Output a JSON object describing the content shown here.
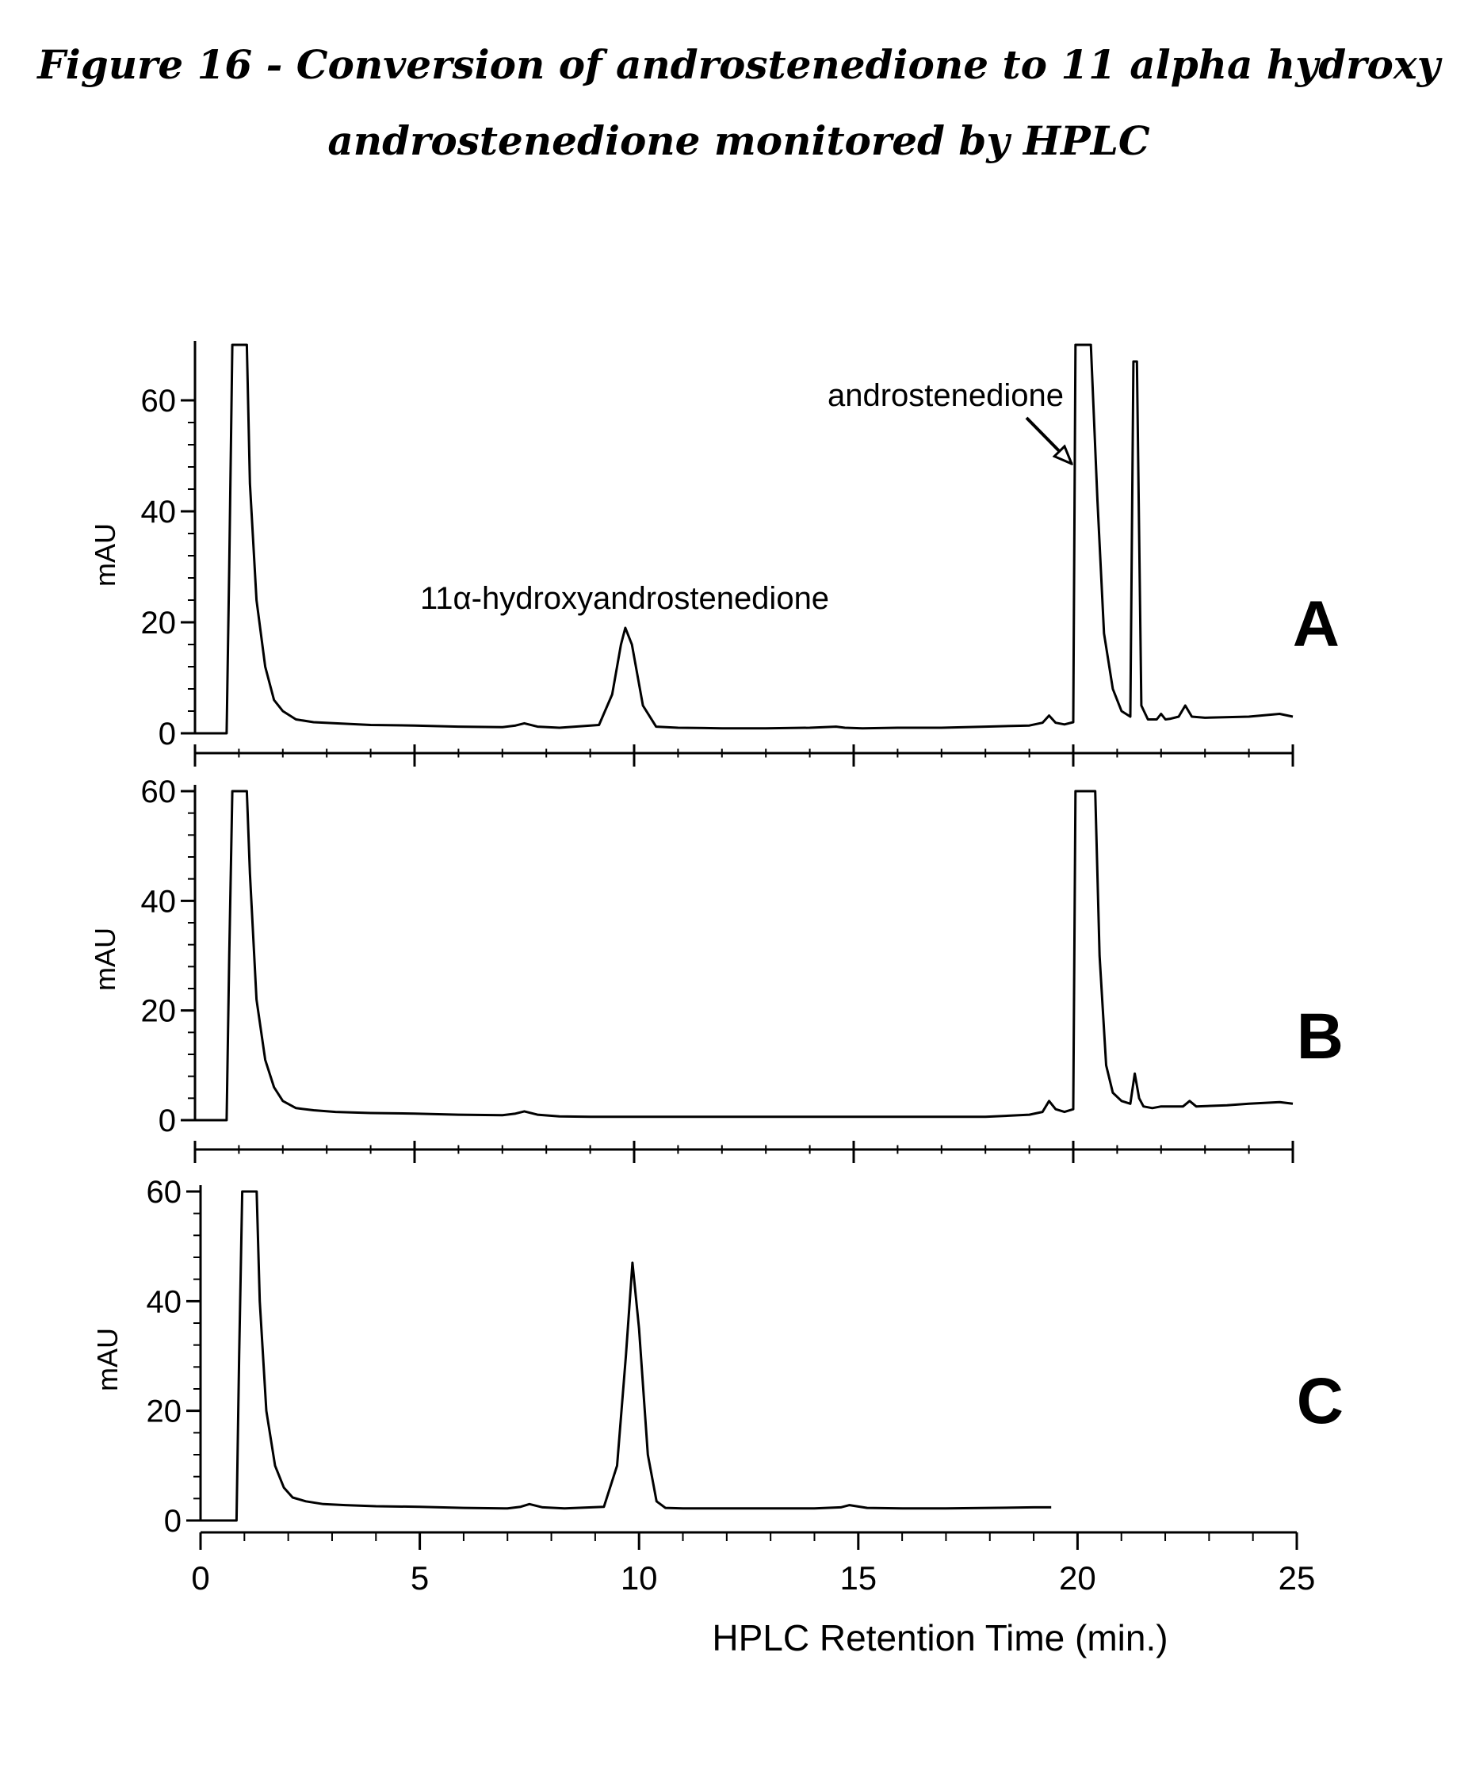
{
  "figure": {
    "title_line1": "Figure 16 - Conversion of androstenedione to 11 alpha hydroxy",
    "title_line2": "androstenedione monitored by HPLC"
  },
  "chart_data": [
    {
      "type": "line",
      "panel_label": "A",
      "ylabel": "mAU",
      "xlim": [
        0,
        25
      ],
      "ylim": [
        0,
        70
      ],
      "yticks": [
        0,
        20,
        40,
        60
      ],
      "xticks": [
        0,
        5,
        10,
        15,
        20,
        25
      ],
      "annotations": [
        {
          "text": "androstenedione",
          "arrow_x": 20.2,
          "arrow_y": 48
        },
        {
          "text": "11α-hydroxyandrostenedione",
          "x": 9.8,
          "y": 19
        }
      ],
      "series": [
        {
          "x": [
            0,
            0.72,
            0.78,
            0.85,
            1.0,
            1.18,
            1.25,
            1.4,
            1.6,
            1.8,
            2.0,
            2.3,
            2.7,
            3.2,
            4,
            5,
            6,
            7,
            7.3,
            7.5,
            7.8,
            8.3,
            9.2,
            9.5,
            9.7,
            9.8,
            9.95,
            10.2,
            10.5,
            11,
            12,
            13,
            14,
            14.6,
            14.8,
            15.2,
            16,
            17,
            18,
            19,
            19.3,
            19.45,
            19.6,
            19.8,
            20.0,
            20.05,
            20.12,
            20.2,
            20.28,
            20.4,
            20.55,
            20.7,
            20.9,
            21.1,
            21.3,
            21.37,
            21.45,
            21.55,
            21.7,
            21.9,
            22.0,
            22.1,
            22.2,
            22.4,
            22.55,
            22.7,
            23,
            24,
            24.7,
            25
          ],
          "y": [
            0,
            0,
            30,
            70,
            70,
            70,
            45,
            24,
            12,
            6,
            4,
            2.5,
            2,
            1.8,
            1.5,
            1.4,
            1.2,
            1.1,
            1.4,
            1.8,
            1.2,
            1.0,
            1.5,
            7,
            16,
            19,
            16,
            5,
            1.2,
            1.0,
            0.9,
            0.9,
            1.0,
            1.2,
            1.0,
            0.9,
            1.0,
            1.0,
            1.2,
            1.4,
            1.9,
            3.2,
            1.9,
            1.6,
            2.0,
            70,
            70,
            70,
            70,
            70,
            42,
            18,
            8,
            4,
            3,
            67,
            67,
            5,
            2.5,
            2.5,
            3.5,
            2.5,
            2.6,
            3,
            5,
            3,
            2.8,
            3,
            3.5,
            3
          ]
        }
      ]
    },
    {
      "type": "line",
      "panel_label": "B",
      "ylabel": "mAU",
      "xlim": [
        0,
        25
      ],
      "ylim": [
        0,
        60
      ],
      "yticks": [
        0,
        20,
        40,
        60
      ],
      "xticks": [
        0,
        5,
        10,
        15,
        20,
        25
      ],
      "series": [
        {
          "x": [
            0,
            0.72,
            0.78,
            0.85,
            1.0,
            1.18,
            1.25,
            1.4,
            1.6,
            1.8,
            2.0,
            2.3,
            2.7,
            3.2,
            4,
            5,
            6,
            7,
            7.3,
            7.5,
            7.8,
            8.3,
            9,
            10,
            11,
            12,
            13,
            14,
            15,
            16,
            17,
            18,
            19,
            19.3,
            19.45,
            19.6,
            19.8,
            20.0,
            20.05,
            20.12,
            20.2,
            20.4,
            20.5,
            20.6,
            20.75,
            20.9,
            21.1,
            21.3,
            21.4,
            21.5,
            21.6,
            21.8,
            22.0,
            22.5,
            22.65,
            22.8,
            23.5,
            24,
            24.7,
            25
          ],
          "y": [
            0,
            0,
            30,
            60,
            60,
            60,
            45,
            22,
            11,
            6,
            3.5,
            2.2,
            1.8,
            1.5,
            1.3,
            1.2,
            1.0,
            0.9,
            1.2,
            1.6,
            1.0,
            0.7,
            0.6,
            0.6,
            0.6,
            0.6,
            0.6,
            0.6,
            0.6,
            0.6,
            0.6,
            0.6,
            1.0,
            1.5,
            3.5,
            2.0,
            1.5,
            2.0,
            60,
            60,
            60,
            60,
            60,
            30,
            10,
            5,
            3.5,
            3.0,
            8.5,
            4.0,
            2.5,
            2.2,
            2.5,
            2.5,
            3.5,
            2.5,
            2.7,
            3.0,
            3.3,
            3.0
          ]
        }
      ]
    },
    {
      "type": "line",
      "panel_label": "C",
      "ylabel": "mAU",
      "xlabel": "HPLC Retention Time (min.)",
      "xlim": [
        0,
        25
      ],
      "ylim": [
        0,
        60
      ],
      "yticks": [
        0,
        20,
        40,
        60
      ],
      "xticks": [
        0,
        5,
        10,
        15,
        20,
        25
      ],
      "series": [
        {
          "x": [
            0,
            0.82,
            0.88,
            0.95,
            1.1,
            1.28,
            1.35,
            1.5,
            1.7,
            1.9,
            2.1,
            2.4,
            2.8,
            3.3,
            4,
            5,
            6,
            7,
            7.3,
            7.5,
            7.8,
            8.3,
            9.2,
            9.5,
            9.7,
            9.85,
            10.0,
            10.2,
            10.4,
            10.6,
            11,
            12,
            13,
            14,
            14.6,
            14.8,
            15.2,
            16,
            17,
            18,
            19,
            19.4
          ],
          "y": [
            0,
            0,
            30,
            60,
            60,
            60,
            40,
            20,
            10,
            6,
            4.2,
            3.5,
            3.0,
            2.8,
            2.6,
            2.5,
            2.3,
            2.2,
            2.5,
            3.0,
            2.4,
            2.2,
            2.5,
            10,
            30,
            47,
            35,
            12,
            3.5,
            2.3,
            2.2,
            2.2,
            2.2,
            2.2,
            2.4,
            2.8,
            2.3,
            2.2,
            2.2,
            2.3,
            2.4,
            2.4
          ]
        }
      ]
    }
  ]
}
